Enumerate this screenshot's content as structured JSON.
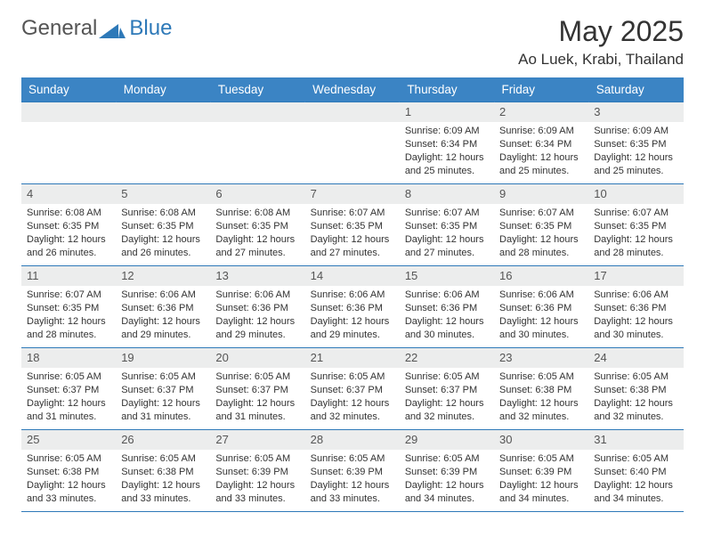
{
  "logo": {
    "text1": "General",
    "text2": "Blue"
  },
  "title": "May 2025",
  "location": "Ao Luek, Krabi, Thailand",
  "weekdays": [
    "Sunday",
    "Monday",
    "Tuesday",
    "Wednesday",
    "Thursday",
    "Friday",
    "Saturday"
  ],
  "colors": {
    "header_bg": "#3b84c4",
    "header_text": "#ffffff",
    "border": "#2e79b8",
    "daynum_bg": "#eceded",
    "logo_blue": "#2e79b8",
    "body_text": "#333333"
  },
  "weeks": [
    [
      {
        "n": "",
        "sunrise": "",
        "sunset": "",
        "daylight1": "",
        "daylight2": ""
      },
      {
        "n": "",
        "sunrise": "",
        "sunset": "",
        "daylight1": "",
        "daylight2": ""
      },
      {
        "n": "",
        "sunrise": "",
        "sunset": "",
        "daylight1": "",
        "daylight2": ""
      },
      {
        "n": "",
        "sunrise": "",
        "sunset": "",
        "daylight1": "",
        "daylight2": ""
      },
      {
        "n": "1",
        "sunrise": "Sunrise: 6:09 AM",
        "sunset": "Sunset: 6:34 PM",
        "daylight1": "Daylight: 12 hours",
        "daylight2": "and 25 minutes."
      },
      {
        "n": "2",
        "sunrise": "Sunrise: 6:09 AM",
        "sunset": "Sunset: 6:34 PM",
        "daylight1": "Daylight: 12 hours",
        "daylight2": "and 25 minutes."
      },
      {
        "n": "3",
        "sunrise": "Sunrise: 6:09 AM",
        "sunset": "Sunset: 6:35 PM",
        "daylight1": "Daylight: 12 hours",
        "daylight2": "and 25 minutes."
      }
    ],
    [
      {
        "n": "4",
        "sunrise": "Sunrise: 6:08 AM",
        "sunset": "Sunset: 6:35 PM",
        "daylight1": "Daylight: 12 hours",
        "daylight2": "and 26 minutes."
      },
      {
        "n": "5",
        "sunrise": "Sunrise: 6:08 AM",
        "sunset": "Sunset: 6:35 PM",
        "daylight1": "Daylight: 12 hours",
        "daylight2": "and 26 minutes."
      },
      {
        "n": "6",
        "sunrise": "Sunrise: 6:08 AM",
        "sunset": "Sunset: 6:35 PM",
        "daylight1": "Daylight: 12 hours",
        "daylight2": "and 27 minutes."
      },
      {
        "n": "7",
        "sunrise": "Sunrise: 6:07 AM",
        "sunset": "Sunset: 6:35 PM",
        "daylight1": "Daylight: 12 hours",
        "daylight2": "and 27 minutes."
      },
      {
        "n": "8",
        "sunrise": "Sunrise: 6:07 AM",
        "sunset": "Sunset: 6:35 PM",
        "daylight1": "Daylight: 12 hours",
        "daylight2": "and 27 minutes."
      },
      {
        "n": "9",
        "sunrise": "Sunrise: 6:07 AM",
        "sunset": "Sunset: 6:35 PM",
        "daylight1": "Daylight: 12 hours",
        "daylight2": "and 28 minutes."
      },
      {
        "n": "10",
        "sunrise": "Sunrise: 6:07 AM",
        "sunset": "Sunset: 6:35 PM",
        "daylight1": "Daylight: 12 hours",
        "daylight2": "and 28 minutes."
      }
    ],
    [
      {
        "n": "11",
        "sunrise": "Sunrise: 6:07 AM",
        "sunset": "Sunset: 6:35 PM",
        "daylight1": "Daylight: 12 hours",
        "daylight2": "and 28 minutes."
      },
      {
        "n": "12",
        "sunrise": "Sunrise: 6:06 AM",
        "sunset": "Sunset: 6:36 PM",
        "daylight1": "Daylight: 12 hours",
        "daylight2": "and 29 minutes."
      },
      {
        "n": "13",
        "sunrise": "Sunrise: 6:06 AM",
        "sunset": "Sunset: 6:36 PM",
        "daylight1": "Daylight: 12 hours",
        "daylight2": "and 29 minutes."
      },
      {
        "n": "14",
        "sunrise": "Sunrise: 6:06 AM",
        "sunset": "Sunset: 6:36 PM",
        "daylight1": "Daylight: 12 hours",
        "daylight2": "and 29 minutes."
      },
      {
        "n": "15",
        "sunrise": "Sunrise: 6:06 AM",
        "sunset": "Sunset: 6:36 PM",
        "daylight1": "Daylight: 12 hours",
        "daylight2": "and 30 minutes."
      },
      {
        "n": "16",
        "sunrise": "Sunrise: 6:06 AM",
        "sunset": "Sunset: 6:36 PM",
        "daylight1": "Daylight: 12 hours",
        "daylight2": "and 30 minutes."
      },
      {
        "n": "17",
        "sunrise": "Sunrise: 6:06 AM",
        "sunset": "Sunset: 6:36 PM",
        "daylight1": "Daylight: 12 hours",
        "daylight2": "and 30 minutes."
      }
    ],
    [
      {
        "n": "18",
        "sunrise": "Sunrise: 6:05 AM",
        "sunset": "Sunset: 6:37 PM",
        "daylight1": "Daylight: 12 hours",
        "daylight2": "and 31 minutes."
      },
      {
        "n": "19",
        "sunrise": "Sunrise: 6:05 AM",
        "sunset": "Sunset: 6:37 PM",
        "daylight1": "Daylight: 12 hours",
        "daylight2": "and 31 minutes."
      },
      {
        "n": "20",
        "sunrise": "Sunrise: 6:05 AM",
        "sunset": "Sunset: 6:37 PM",
        "daylight1": "Daylight: 12 hours",
        "daylight2": "and 31 minutes."
      },
      {
        "n": "21",
        "sunrise": "Sunrise: 6:05 AM",
        "sunset": "Sunset: 6:37 PM",
        "daylight1": "Daylight: 12 hours",
        "daylight2": "and 32 minutes."
      },
      {
        "n": "22",
        "sunrise": "Sunrise: 6:05 AM",
        "sunset": "Sunset: 6:37 PM",
        "daylight1": "Daylight: 12 hours",
        "daylight2": "and 32 minutes."
      },
      {
        "n": "23",
        "sunrise": "Sunrise: 6:05 AM",
        "sunset": "Sunset: 6:38 PM",
        "daylight1": "Daylight: 12 hours",
        "daylight2": "and 32 minutes."
      },
      {
        "n": "24",
        "sunrise": "Sunrise: 6:05 AM",
        "sunset": "Sunset: 6:38 PM",
        "daylight1": "Daylight: 12 hours",
        "daylight2": "and 32 minutes."
      }
    ],
    [
      {
        "n": "25",
        "sunrise": "Sunrise: 6:05 AM",
        "sunset": "Sunset: 6:38 PM",
        "daylight1": "Daylight: 12 hours",
        "daylight2": "and 33 minutes."
      },
      {
        "n": "26",
        "sunrise": "Sunrise: 6:05 AM",
        "sunset": "Sunset: 6:38 PM",
        "daylight1": "Daylight: 12 hours",
        "daylight2": "and 33 minutes."
      },
      {
        "n": "27",
        "sunrise": "Sunrise: 6:05 AM",
        "sunset": "Sunset: 6:39 PM",
        "daylight1": "Daylight: 12 hours",
        "daylight2": "and 33 minutes."
      },
      {
        "n": "28",
        "sunrise": "Sunrise: 6:05 AM",
        "sunset": "Sunset: 6:39 PM",
        "daylight1": "Daylight: 12 hours",
        "daylight2": "and 33 minutes."
      },
      {
        "n": "29",
        "sunrise": "Sunrise: 6:05 AM",
        "sunset": "Sunset: 6:39 PM",
        "daylight1": "Daylight: 12 hours",
        "daylight2": "and 34 minutes."
      },
      {
        "n": "30",
        "sunrise": "Sunrise: 6:05 AM",
        "sunset": "Sunset: 6:39 PM",
        "daylight1": "Daylight: 12 hours",
        "daylight2": "and 34 minutes."
      },
      {
        "n": "31",
        "sunrise": "Sunrise: 6:05 AM",
        "sunset": "Sunset: 6:40 PM",
        "daylight1": "Daylight: 12 hours",
        "daylight2": "and 34 minutes."
      }
    ]
  ]
}
